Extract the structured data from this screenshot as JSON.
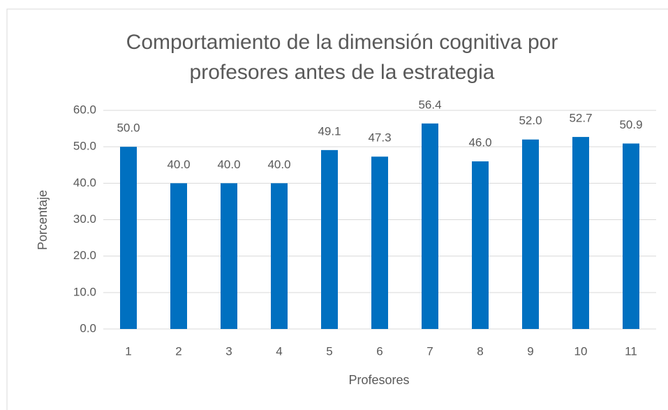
{
  "chart_data": {
    "type": "bar",
    "title": "Comportamiento de la dimensión cognitiva por profesores antes de la estrategia",
    "x_label": "Profesores",
    "y_label": "Porcentaje",
    "categories": [
      "1",
      "2",
      "3",
      "4",
      "5",
      "6",
      "7",
      "8",
      "9",
      "10",
      "11"
    ],
    "values": [
      50.0,
      40.0,
      40.0,
      40.0,
      49.1,
      47.3,
      56.4,
      46.0,
      52.0,
      52.7,
      50.9
    ],
    "value_labels": [
      "50.0",
      "40.0",
      "40.0",
      "40.0",
      "49.1",
      "47.3",
      "56.4",
      "46.0",
      "52.0",
      "52.7",
      "50.9"
    ],
    "color": "#0070c0",
    "ylim": [
      0,
      60
    ],
    "yticks": [
      {
        "value": 0,
        "label": "0.0"
      },
      {
        "value": 10,
        "label": "10.0"
      },
      {
        "value": 20,
        "label": "20.0"
      },
      {
        "value": 30,
        "label": "30.0"
      },
      {
        "value": 40,
        "label": "40.0"
      },
      {
        "value": 50,
        "label": "50.0"
      },
      {
        "value": 60,
        "label": "60.0"
      }
    ],
    "grid": true
  }
}
